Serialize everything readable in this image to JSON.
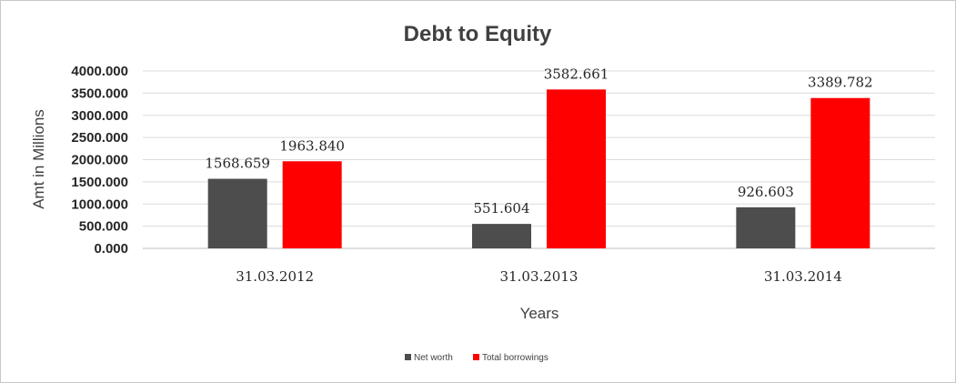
{
  "chart_data": {
    "type": "bar",
    "title": "Debt to Equity",
    "xlabel": "Years",
    "ylabel": "Amt in Millions",
    "categories": [
      "31.03.2012",
      "31.03.2013",
      "31.03.2014"
    ],
    "series": [
      {
        "name": "Net worth",
        "color": "#4d4d4d",
        "values": [
          1568.659,
          551.604,
          926.603
        ],
        "labels": [
          "1568.659",
          "551.604",
          "926.603"
        ]
      },
      {
        "name": "Total borrowings",
        "color": "#ff0000",
        "values": [
          1963.84,
          3582.661,
          3389.782
        ],
        "labels": [
          "1963.840",
          "3582.661",
          "3389.782"
        ]
      }
    ],
    "ylim": [
      0,
      4000
    ],
    "yticks": [
      0,
      500,
      1000,
      1500,
      2000,
      2500,
      3000,
      3500,
      4000
    ],
    "ytick_labels": [
      "0.000",
      "500.000",
      "1000.000",
      "1500.000",
      "2000.000",
      "2500.000",
      "3000.000",
      "3500.000",
      "4000.000"
    ],
    "grid": true,
    "legend_position": "bottom"
  }
}
